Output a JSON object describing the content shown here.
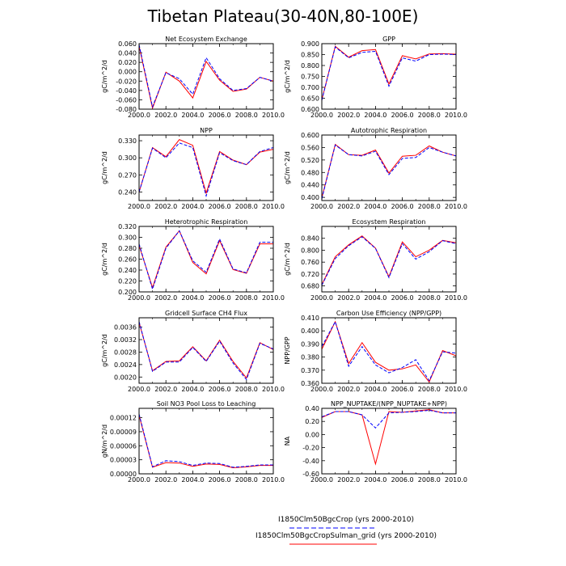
{
  "figure": {
    "title": "Tibetan Plateau(30-40N,80-100E)",
    "legend": [
      {
        "label": "I1850Clm50BgcCrop (yrs 2000-2010)",
        "color": "#0000ff",
        "dash": true
      },
      {
        "label": "I1850Clm50BgcCropSulman_grid (yrs 2000-2010)",
        "color": "#ff0000",
        "dash": false
      }
    ]
  },
  "chart_data": [
    {
      "type": "line",
      "title": "Net Ecosystem Exchange",
      "ylabel": "gC/m^2/d",
      "x": [
        2000,
        2001,
        2002,
        2003,
        2004,
        2005,
        2006,
        2007,
        2008,
        2009,
        2010
      ],
      "xticks": [
        "2000.0",
        "2002.0",
        "2004.0",
        "2006.0",
        "2008.0",
        "2010.0"
      ],
      "ylim": [
        -0.08,
        0.06
      ],
      "yticks": [
        "-0.080",
        "-0.060",
        "-0.040",
        "-0.020",
        "0.000",
        "0.020",
        "0.040",
        "0.060"
      ],
      "series": [
        {
          "color": "#0000ff",
          "dash": true,
          "values": [
            0.058,
            -0.075,
            -0.002,
            -0.015,
            -0.048,
            0.03,
            -0.015,
            -0.04,
            -0.036,
            -0.012,
            -0.02
          ]
        },
        {
          "color": "#ff0000",
          "dash": false,
          "values": [
            0.055,
            -0.078,
            -0.001,
            -0.02,
            -0.056,
            0.022,
            -0.018,
            -0.042,
            -0.037,
            -0.012,
            -0.02
          ]
        }
      ]
    },
    {
      "type": "line",
      "title": "GPP",
      "ylabel": "gC/m^2/d",
      "x": [
        2000,
        2001,
        2002,
        2003,
        2004,
        2005,
        2006,
        2007,
        2008,
        2009,
        2010
      ],
      "xticks": [
        "2000.0",
        "2002.0",
        "2004.0",
        "2006.0",
        "2008.0",
        "2010.0"
      ],
      "ylim": [
        0.6,
        0.9
      ],
      "yticks": [
        "0.600",
        "0.650",
        "0.700",
        "0.750",
        "0.800",
        "0.850",
        "0.900"
      ],
      "series": [
        {
          "color": "#0000ff",
          "dash": true,
          "values": [
            0.64,
            0.885,
            0.835,
            0.86,
            0.865,
            0.705,
            0.835,
            0.82,
            0.85,
            0.852,
            0.85
          ]
        },
        {
          "color": "#ff0000",
          "dash": false,
          "values": [
            0.642,
            0.888,
            0.838,
            0.868,
            0.873,
            0.715,
            0.845,
            0.83,
            0.853,
            0.854,
            0.852
          ]
        }
      ]
    },
    {
      "type": "line",
      "title": "NPP",
      "ylabel": "gC/m^2/d",
      "x": [
        2000,
        2001,
        2002,
        2003,
        2004,
        2005,
        2006,
        2007,
        2008,
        2009,
        2010
      ],
      "xticks": [
        "2000.0",
        "2002.0",
        "2004.0",
        "2006.0",
        "2008.0",
        "2010.0"
      ],
      "ylim": [
        0.225,
        0.34
      ],
      "yticks": [
        "0.240",
        "0.270",
        "0.300",
        "0.330"
      ],
      "series": [
        {
          "color": "#0000ff",
          "dash": true,
          "values": [
            0.24,
            0.317,
            0.3,
            0.326,
            0.318,
            0.233,
            0.309,
            0.295,
            0.288,
            0.311,
            0.318
          ]
        },
        {
          "color": "#ff0000",
          "dash": false,
          "values": [
            0.24,
            0.318,
            0.302,
            0.332,
            0.322,
            0.238,
            0.311,
            0.296,
            0.288,
            0.31,
            0.315
          ]
        }
      ]
    },
    {
      "type": "line",
      "title": "Autotrophic Respiration",
      "ylabel": "gC/m^2/d",
      "x": [
        2000,
        2001,
        2002,
        2003,
        2004,
        2005,
        2006,
        2007,
        2008,
        2009,
        2010
      ],
      "xticks": [
        "2000.0",
        "2002.0",
        "2004.0",
        "2006.0",
        "2008.0",
        "2010.0"
      ],
      "ylim": [
        0.39,
        0.6
      ],
      "yticks": [
        "0.400",
        "0.440",
        "0.480",
        "0.520",
        "0.560",
        "0.600"
      ],
      "series": [
        {
          "color": "#0000ff",
          "dash": true,
          "values": [
            0.395,
            0.568,
            0.537,
            0.533,
            0.548,
            0.473,
            0.525,
            0.528,
            0.56,
            0.545,
            0.533
          ]
        },
        {
          "color": "#ff0000",
          "dash": false,
          "values": [
            0.398,
            0.57,
            0.537,
            0.535,
            0.552,
            0.478,
            0.532,
            0.535,
            0.565,
            0.545,
            0.533
          ]
        }
      ]
    },
    {
      "type": "line",
      "title": "Heterotrophic Respiration",
      "ylabel": "gC/m^2/d",
      "x": [
        2000,
        2001,
        2002,
        2003,
        2004,
        2005,
        2006,
        2007,
        2008,
        2009,
        2010
      ],
      "xticks": [
        "2000.0",
        "2002.0",
        "2004.0",
        "2006.0",
        "2008.0",
        "2010.0"
      ],
      "ylim": [
        0.2,
        0.32
      ],
      "yticks": [
        "0.200",
        "0.220",
        "0.240",
        "0.260",
        "0.280",
        "0.300",
        "0.320"
      ],
      "series": [
        {
          "color": "#0000ff",
          "dash": true,
          "values": [
            0.288,
            0.205,
            0.28,
            0.312,
            0.257,
            0.236,
            0.297,
            0.242,
            0.235,
            0.291,
            0.291
          ]
        },
        {
          "color": "#ff0000",
          "dash": false,
          "values": [
            0.285,
            0.208,
            0.282,
            0.312,
            0.254,
            0.233,
            0.294,
            0.241,
            0.234,
            0.288,
            0.288
          ]
        }
      ]
    },
    {
      "type": "line",
      "title": "Ecosystem Respiration",
      "ylabel": "gC/m^2/d",
      "x": [
        2000,
        2001,
        2002,
        2003,
        2004,
        2005,
        2006,
        2007,
        2008,
        2009,
        2010
      ],
      "xticks": [
        "2000.0",
        "2002.0",
        "2004.0",
        "2006.0",
        "2008.0",
        "2010.0"
      ],
      "ylim": [
        0.66,
        0.88
      ],
      "yticks": [
        "0.680",
        "0.720",
        "0.760",
        "0.800",
        "0.840"
      ],
      "series": [
        {
          "color": "#0000ff",
          "dash": true,
          "values": [
            0.682,
            0.772,
            0.815,
            0.845,
            0.806,
            0.708,
            0.822,
            0.77,
            0.795,
            0.832,
            0.822
          ]
        },
        {
          "color": "#ff0000",
          "dash": false,
          "values": [
            0.684,
            0.778,
            0.818,
            0.848,
            0.807,
            0.711,
            0.828,
            0.778,
            0.8,
            0.833,
            0.825
          ]
        }
      ]
    },
    {
      "type": "line",
      "title": "Gridcell Surface CH4 Flux",
      "ylabel": "gC/m^2/d",
      "x": [
        2000,
        2001,
        2002,
        2003,
        2004,
        2005,
        2006,
        2007,
        2008,
        2009,
        2010
      ],
      "xticks": [
        "2000.0",
        "2002.0",
        "2004.0",
        "2006.0",
        "2008.0",
        "2010.0"
      ],
      "ylim": [
        0.0018,
        0.0039
      ],
      "yticks": [
        "0.0020",
        "0.0024",
        "0.0028",
        "0.0032",
        "0.0036"
      ],
      "series": [
        {
          "color": "#0000ff",
          "dash": true,
          "values": [
            0.00378,
            0.00218,
            0.00248,
            0.00248,
            0.00295,
            0.0025,
            0.00315,
            0.00245,
            0.00192,
            0.00308,
            0.0029
          ]
        },
        {
          "color": "#ff0000",
          "dash": false,
          "values": [
            0.00375,
            0.0022,
            0.0025,
            0.00252,
            0.00297,
            0.00252,
            0.00318,
            0.0025,
            0.00197,
            0.0031,
            0.00288
          ]
        }
      ]
    },
    {
      "type": "line",
      "title": "Carbon Use Efficiency (NPP/GPP)",
      "ylabel": "NPP/GPP",
      "x": [
        2000,
        2001,
        2002,
        2003,
        2004,
        2005,
        2006,
        2007,
        2008,
        2009,
        2010
      ],
      "xticks": [
        "2000.0",
        "2002.0",
        "2004.0",
        "2006.0",
        "2008.0",
        "2010.0"
      ],
      "ylim": [
        0.36,
        0.41
      ],
      "yticks": [
        "0.360",
        "0.370",
        "0.380",
        "0.390",
        "0.400",
        "0.410"
      ],
      "series": [
        {
          "color": "#0000ff",
          "dash": true,
          "values": [
            0.388,
            0.407,
            0.373,
            0.388,
            0.374,
            0.368,
            0.372,
            0.378,
            0.362,
            0.384,
            0.383
          ]
        },
        {
          "color": "#ff0000",
          "dash": false,
          "values": [
            0.386,
            0.407,
            0.375,
            0.391,
            0.376,
            0.37,
            0.371,
            0.374,
            0.361,
            0.385,
            0.381
          ]
        }
      ]
    },
    {
      "type": "line",
      "title": "Soil NO3 Pool Loss to Leaching",
      "ylabel": "gN/m^2/d",
      "x": [
        2000,
        2001,
        2002,
        2003,
        2004,
        2005,
        2006,
        2007,
        2008,
        2009,
        2010
      ],
      "xticks": [
        "2000.0",
        "2002.0",
        "2004.0",
        "2006.0",
        "2008.0",
        "2010.0"
      ],
      "ylim": [
        0,
        0.00014
      ],
      "yticks": [
        "0.00000",
        "0.00003",
        "0.00006",
        "0.00009",
        "0.00012"
      ],
      "series": [
        {
          "color": "#0000ff",
          "dash": true,
          "values": [
            0.000128,
            1.5e-05,
            2.8e-05,
            2.6e-05,
            1.8e-05,
            2.3e-05,
            2.2e-05,
            1.4e-05,
            1.6e-05,
            1.9e-05,
            1.9e-05
          ]
        },
        {
          "color": "#ff0000",
          "dash": false,
          "values": [
            0.000125,
            1.4e-05,
            2.4e-05,
            2.3e-05,
            1.6e-05,
            2.1e-05,
            2e-05,
            1.3e-05,
            1.5e-05,
            1.8e-05,
            1.8e-05
          ]
        }
      ]
    },
    {
      "type": "line",
      "title": "NPP_NUPTAKE/(NPP_NUPTAKE+NPP)",
      "ylabel": "NA",
      "x": [
        2000,
        2001,
        2002,
        2003,
        2004,
        2005,
        2006,
        2007,
        2008,
        2009,
        2010
      ],
      "xticks": [
        "2000.0",
        "2002.0",
        "2004.0",
        "2006.0",
        "2008.0",
        "2010.0"
      ],
      "ylim": [
        -0.6,
        0.4
      ],
      "yticks": [
        "-0.60",
        "-0.40",
        "-0.20",
        "0.00",
        "0.20",
        "0.40"
      ],
      "series": [
        {
          "color": "#0000ff",
          "dash": true,
          "values": [
            0.27,
            0.35,
            0.35,
            0.3,
            0.1,
            0.33,
            0.34,
            0.35,
            0.37,
            0.33,
            0.33
          ]
        },
        {
          "color": "#ff0000",
          "dash": false,
          "values": [
            0.26,
            0.35,
            0.35,
            0.3,
            -0.45,
            0.35,
            0.34,
            0.36,
            0.38,
            0.33,
            0.33
          ]
        }
      ]
    }
  ]
}
